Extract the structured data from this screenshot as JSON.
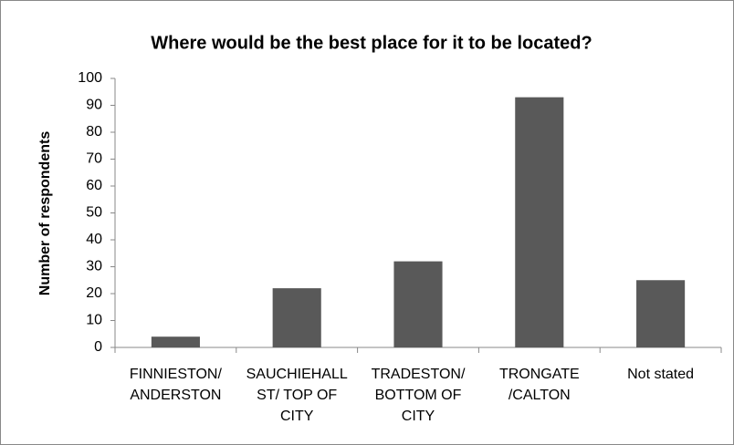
{
  "chart_data": {
    "type": "bar",
    "title": "Where would be the best place for it to be located?",
    "y_label": "Number of respondents",
    "categories": [
      "FINNIESTON/ ANDERSTON",
      "SAUCHIEHALL ST/ TOP OF CITY",
      "TRADESTON/ BOTTOM OF CITY",
      "TRONGATE /CALTON",
      "Not stated"
    ],
    "values": [
      4,
      22,
      32,
      93,
      25
    ],
    "color": "#595959",
    "ylim": [
      0,
      100
    ],
    "yticks": [
      0,
      10,
      20,
      30,
      40,
      50,
      60,
      70,
      80,
      90,
      100
    ],
    "grid": false
  }
}
